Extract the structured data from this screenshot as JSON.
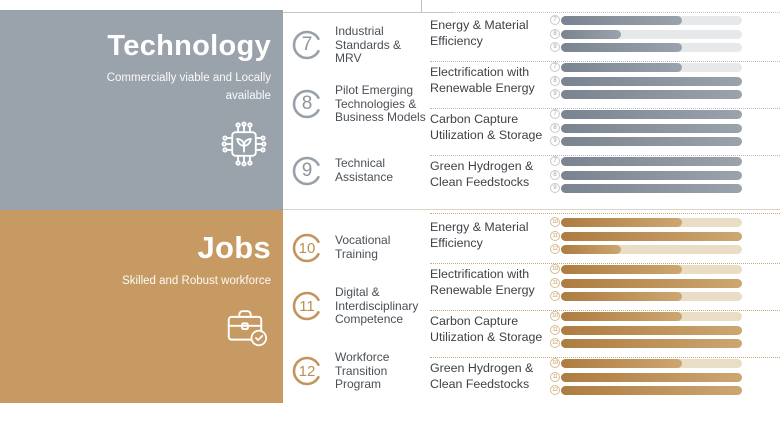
{
  "meta": {
    "accent_gray": "#9aa2ac",
    "accent_gold": "#c69a62",
    "bar_track_gray": "#e6e8ea",
    "bar_track_tan": "#eaddc5"
  },
  "sections": [
    {
      "title": "Technology",
      "subtitle": "Commercially viable and Locally available",
      "icon": "chip-plant-icon",
      "drivers": [
        {
          "num": "7",
          "label": "Industrial Standards & MRV"
        },
        {
          "num": "8",
          "label": "Pilot Emerging Technologies & Business Models"
        },
        {
          "num": "9",
          "label": "Technical Assistance"
        }
      ],
      "categories": [
        {
          "label": "Energy & Material Efficiency",
          "bars": [
            {
              "num": "7",
              "pct": 67
            },
            {
              "num": "8",
              "pct": 33
            },
            {
              "num": "9",
              "pct": 67
            }
          ]
        },
        {
          "label": "Electrification with Renewable Energy",
          "bars": [
            {
              "num": "7",
              "pct": 67
            },
            {
              "num": "8",
              "pct": 100
            },
            {
              "num": "9",
              "pct": 100
            }
          ]
        },
        {
          "label": "Carbon Capture Utilization & Storage",
          "bars": [
            {
              "num": "7",
              "pct": 100
            },
            {
              "num": "8",
              "pct": 100
            },
            {
              "num": "9",
              "pct": 100
            }
          ]
        },
        {
          "label": "Green Hydrogen & Clean Feedstocks",
          "bars": [
            {
              "num": "7",
              "pct": 100
            },
            {
              "num": "8",
              "pct": 100
            },
            {
              "num": "9",
              "pct": 100
            }
          ]
        }
      ]
    },
    {
      "title": "Jobs",
      "subtitle": "Skilled and Robust workforce",
      "icon": "briefcase-check-icon",
      "drivers": [
        {
          "num": "10",
          "label": "Vocational Training"
        },
        {
          "num": "11",
          "label": "Digital & Interdisciplinary Competence"
        },
        {
          "num": "12",
          "label": "Workforce Transition Program"
        }
      ],
      "categories": [
        {
          "label": "Energy & Material Efficiency",
          "bars": [
            {
              "num": "10",
              "pct": 67
            },
            {
              "num": "11",
              "pct": 100
            },
            {
              "num": "12",
              "pct": 33
            }
          ]
        },
        {
          "label": "Electrification with Renewable Energy",
          "bars": [
            {
              "num": "10",
              "pct": 67
            },
            {
              "num": "11",
              "pct": 100
            },
            {
              "num": "12",
              "pct": 67
            }
          ]
        },
        {
          "label": "Carbon Capture Utilization & Storage",
          "bars": [
            {
              "num": "10",
              "pct": 67
            },
            {
              "num": "11",
              "pct": 100
            },
            {
              "num": "12",
              "pct": 100
            }
          ]
        },
        {
          "label": "Green Hydrogen & Clean Feedstocks",
          "bars": [
            {
              "num": "10",
              "pct": 67
            },
            {
              "num": "11",
              "pct": 100
            },
            {
              "num": "12",
              "pct": 100
            }
          ]
        }
      ]
    }
  ]
}
